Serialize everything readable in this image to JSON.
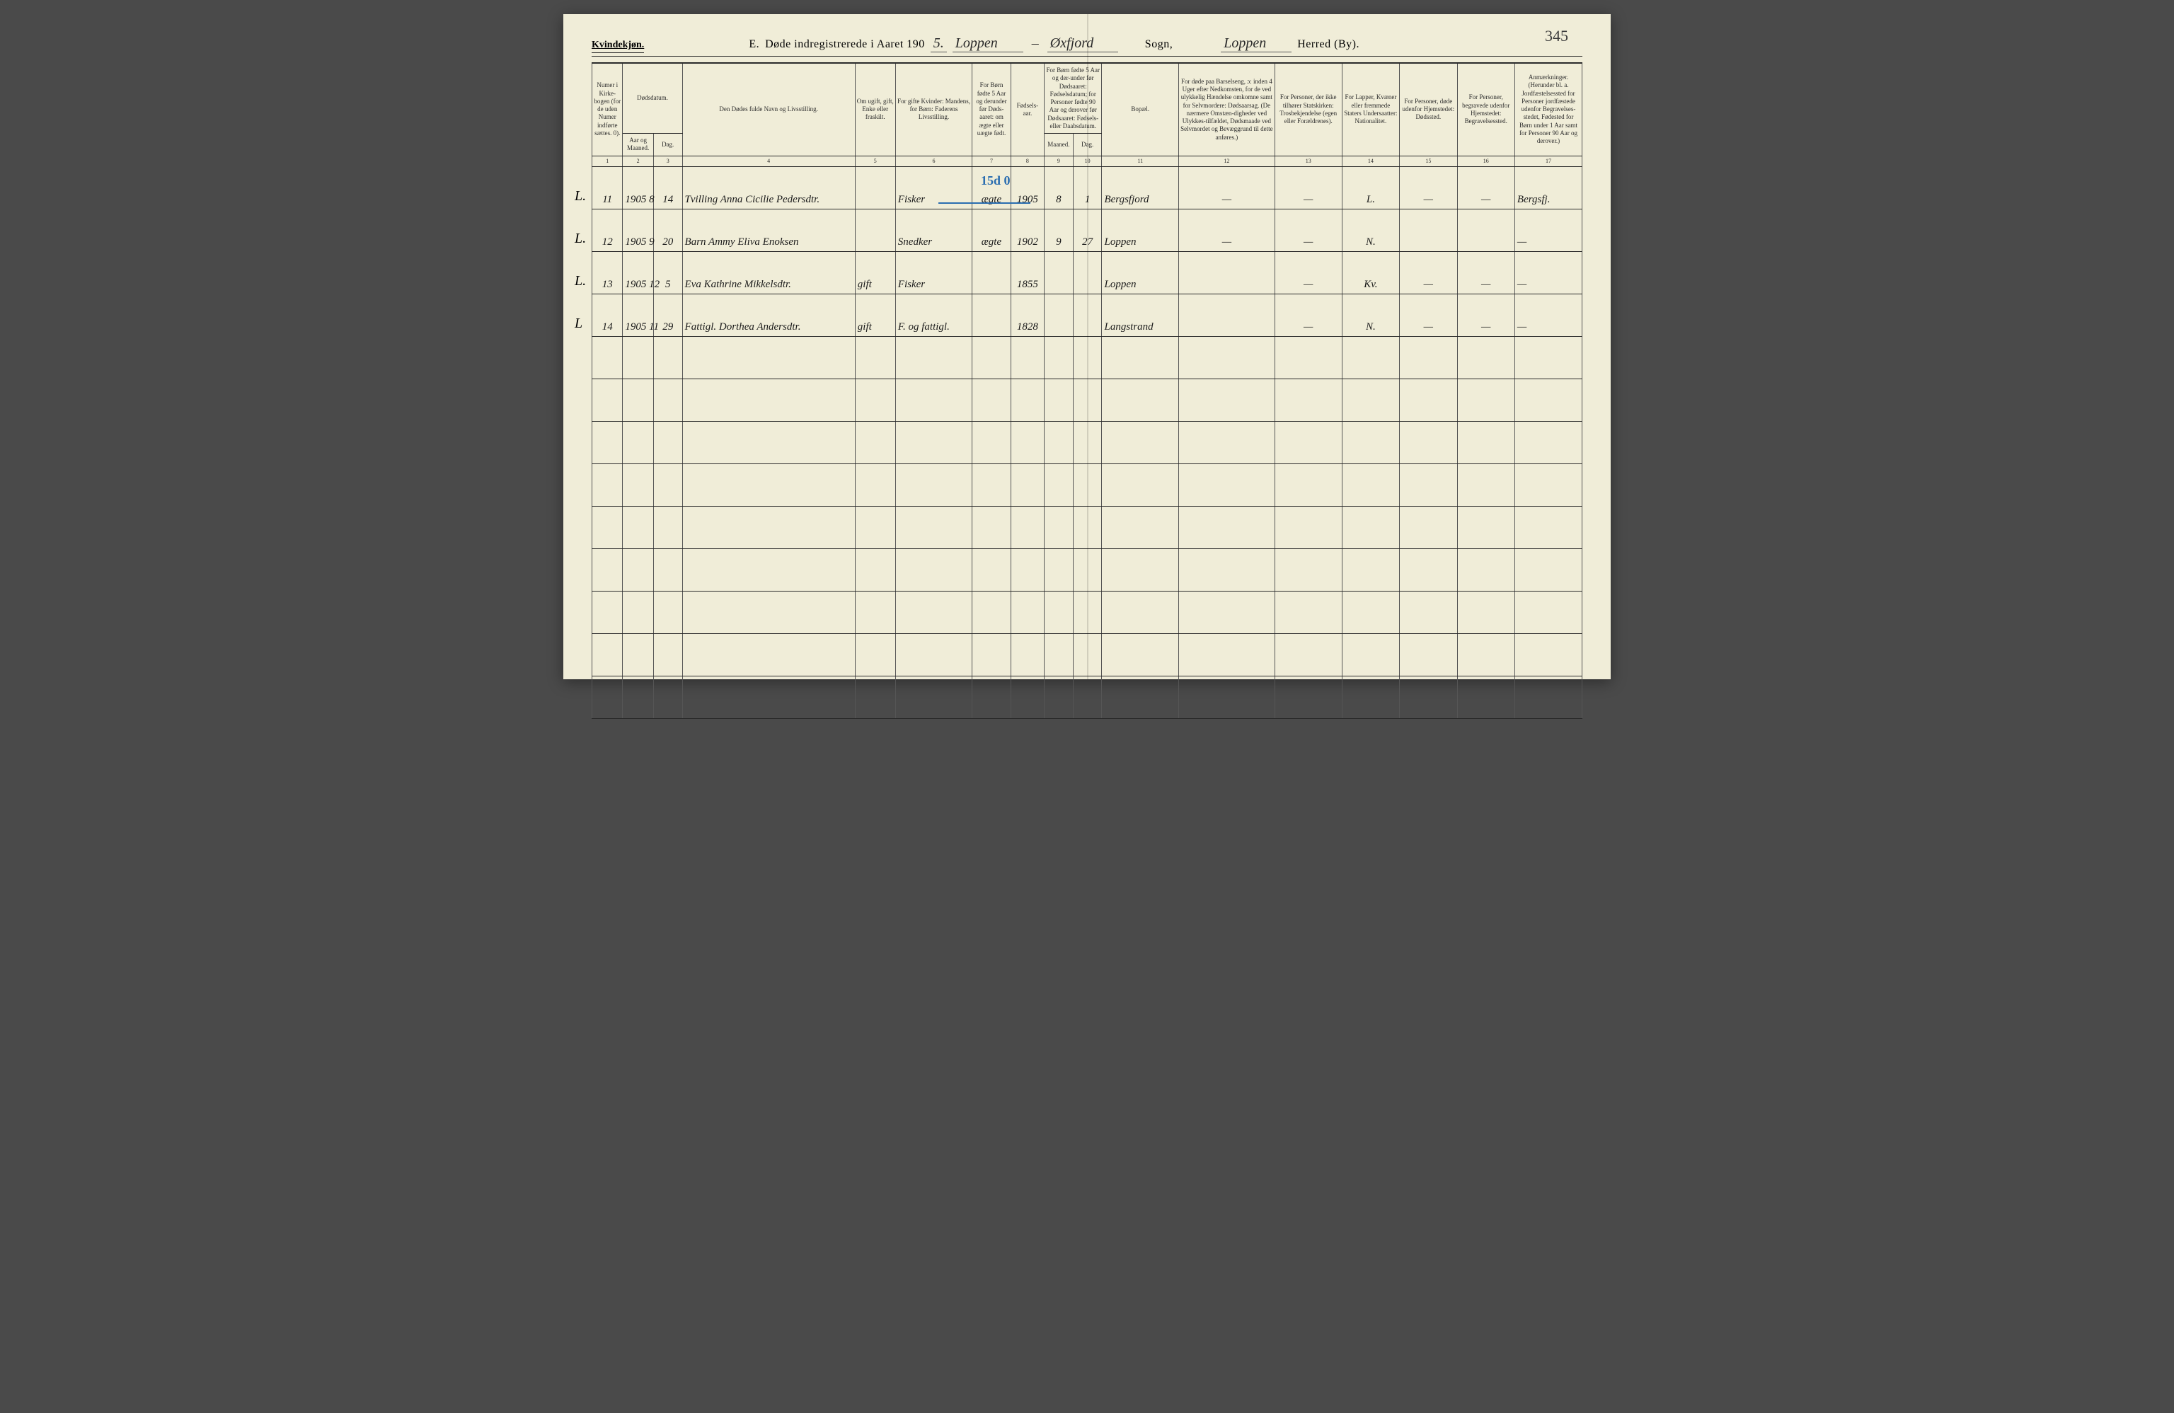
{
  "page_number": "345",
  "header": {
    "gender": "Kvindekjøn.",
    "section_letter": "E.",
    "title_prefix": "Døde indregistrerede i Aaret 190",
    "year_suffix": "5.",
    "parish_script_1": "Loppen",
    "parish_dash": "–",
    "parish_script_2": "Øxfjord",
    "sogn_label": "Sogn,",
    "herred_script": "Loppen",
    "herred_label": "Herred (By)."
  },
  "columns": {
    "c1": "Numer i Kirke-bogen (for de uden Numer indførte sættes. 0).",
    "c2a": "Dødsdatum.",
    "c2b": "Aar og Maaned.",
    "c3": "Dag.",
    "c4": "Den Dødes fulde Navn og Livsstilling.",
    "c5": "Om ugift, gift, Enke eller fraskilt.",
    "c6": "For gifte Kvinder: Mandens, for Børn: Faderens Livsstilling.",
    "c7": "For Børn fødte 5 Aar og derunder før Døds-aaret: om ægte eller uægte født.",
    "c8": "Fødsels-aar.",
    "c9_10": "For Børn fødte 5 Aar og der-under før Dødsaaret: Fødselsdatum; for Personer fødte 90 Aar og derover før Dødsaaret: Fødsels- eller Daabsdatum.",
    "c9": "Maaned.",
    "c10": "Dag.",
    "c11": "Bopæl.",
    "c12": "For døde paa Barselseng, ɔ: inden 4 Uger efter Nedkomsten, for de ved ulykkelig Hændelse omkomne samt for Selvmordere: Dødsaarsag. (De nærmere Omstæn-digheder ved Ulykkes-tilfældet, Dødsmaade ved Selvmordet og Bevæggrund til dette anføres.)",
    "c13": "For Personer, der ikke tilhører Statskirken: Trosbekjendelse (egen eller Forældrenes).",
    "c14": "For Lapper, Kvæner eller fremmede Staters Undersaatter: Nationalitet.",
    "c15": "For Personer, døde udenfor Hjemstedet: Dødssted.",
    "c16": "For Personer, begravede udenfor Hjemstedet: Begravelsessted.",
    "c17": "Anmærkninger. (Herunder bl. a. Jordfæstelsessted for Personer jordfæstede udenfor Begravelses-stedet, Fødested for Børn under 1 Aar samt for Personer 90 Aar og derover.)"
  },
  "colnums": [
    "1",
    "2",
    "3",
    "4",
    "5",
    "6",
    "7",
    "8",
    "9",
    "10",
    "11",
    "12",
    "13",
    "14",
    "15",
    "16",
    "17"
  ],
  "rows": [
    {
      "prefix": "L.",
      "c1": "11",
      "c2": "1905 8",
      "c3": "14",
      "c4": "Tvilling Anna Cicilie Pedersdtr.",
      "c5": "",
      "c6": "Fisker",
      "c7": "ægte",
      "c8": "1905",
      "c9": "8",
      "c10": "1",
      "c11": "Bergsfjord",
      "c12": "—",
      "c13": "—",
      "c14": "L.",
      "c15": "—",
      "c16": "—",
      "c17": "Bergsfj."
    },
    {
      "prefix": "L.",
      "c1": "12",
      "c2": "1905 9",
      "c3": "20",
      "c4": "Barn Ammy Eliva Enoksen",
      "c5": "",
      "c6": "Snedker",
      "c7": "ægte",
      "c8": "1902",
      "c9": "9",
      "c10": "27",
      "c11": "Loppen",
      "c12": "—",
      "c13": "—",
      "c14": "N.",
      "c15": "",
      "c16": "",
      "c17": "—"
    },
    {
      "prefix": "L.",
      "c1": "13",
      "c2": "1905 12",
      "c3": "5",
      "c4": "Eva Kathrine Mikkelsdtr.",
      "c5": "gift",
      "c6": "Fisker",
      "c7": "",
      "c8": "1855",
      "c9": "",
      "c10": "",
      "c11": "Loppen",
      "c12": "",
      "c13": "—",
      "c14": "Kv.",
      "c15": "—",
      "c16": "—",
      "c17": "—"
    },
    {
      "prefix": "L",
      "c1": "14",
      "c2": "1905 11",
      "c3": "29",
      "c4": "Fattigl. Dorthea Andersdtr.",
      "c5": "gift",
      "c6": "F. og fattigl.",
      "c7": "",
      "c8": "1828",
      "c9": "",
      "c10": "",
      "c11": "Langstrand",
      "c12": "",
      "c13": "—",
      "c14": "N.",
      "c15": "—",
      "c16": "—",
      "c17": "—"
    }
  ],
  "blue_annotation": {
    "text": "15d 0",
    "underline": true
  },
  "styling": {
    "paper_color": "#f0edd8",
    "ink_color": "#1a1a1a",
    "rule_color": "#2a2a2a",
    "blue_color": "#2a6db0",
    "header_fontsize": 16,
    "script_fontsize": 20,
    "cell_fontsize": 15,
    "thead_fontsize": 9,
    "empty_rows": 9
  }
}
